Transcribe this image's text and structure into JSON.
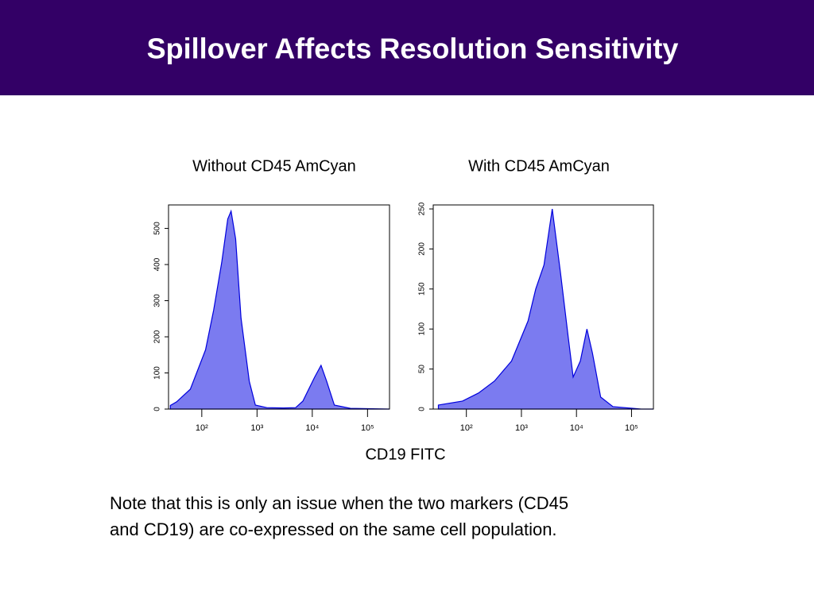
{
  "title": "Spillover Affects Resolution Sensitivity",
  "shared_xlabel": "CD19 FITC",
  "note": [
    "Note that this is only an issue when the two markers (CD45",
    "and CD19) are co-expressed on the same cell population."
  ],
  "chart_data": [
    {
      "type": "area",
      "title": "Without CD45 AmCyan",
      "xscale": "log",
      "xlim": [
        25,
        250000
      ],
      "ylim": [
        0,
        565
      ],
      "xticks": [
        {
          "value": 100,
          "label": "10²"
        },
        {
          "value": 1000,
          "label": "10³"
        },
        {
          "value": 10000,
          "label": "10⁴"
        },
        {
          "value": 100000,
          "label": "10⁵"
        }
      ],
      "yticks": [
        0,
        100,
        200,
        300,
        400,
        500
      ],
      "series": [
        {
          "color": "#0000dd",
          "fill": "#7b7bf0",
          "x": [
            27,
            35,
            62,
            117,
            164,
            229,
            295,
            339,
            410,
            513,
            724,
            933,
            1500,
            3000,
            5000,
            6760,
            11000,
            14400,
            18200,
            25100,
            49000,
            250000
          ],
          "values": [
            10,
            20,
            55,
            164,
            274,
            405,
            526,
            548,
            471,
            252,
            77,
            11,
            4,
            3,
            4,
            22,
            88,
            121,
            77,
            11,
            2,
            0
          ]
        }
      ]
    },
    {
      "type": "area",
      "title": "With CD45 AmCyan",
      "xscale": "log",
      "xlim": [
        25,
        250000
      ],
      "ylim": [
        0,
        255
      ],
      "xticks": [
        {
          "value": 100,
          "label": "10²"
        },
        {
          "value": 1000,
          "label": "10³"
        },
        {
          "value": 10000,
          "label": "10⁴"
        },
        {
          "value": 100000,
          "label": "10⁵"
        }
      ],
      "yticks": [
        0,
        50,
        100,
        150,
        200,
        250
      ],
      "series": [
        {
          "color": "#0000dd",
          "fill": "#7b7bf0",
          "x": [
            31,
            85,
            166,
            324,
            661,
            1318,
            1820,
            2570,
            3630,
            5130,
            7080,
            8710,
            11750,
            15490,
            19500,
            27500,
            46000,
            150000,
            250000
          ],
          "values": [
            5,
            10,
            20,
            35,
            60,
            110,
            150,
            180,
            250,
            170,
            90,
            40,
            60,
            100,
            70,
            15,
            3,
            0,
            0
          ]
        }
      ]
    }
  ]
}
